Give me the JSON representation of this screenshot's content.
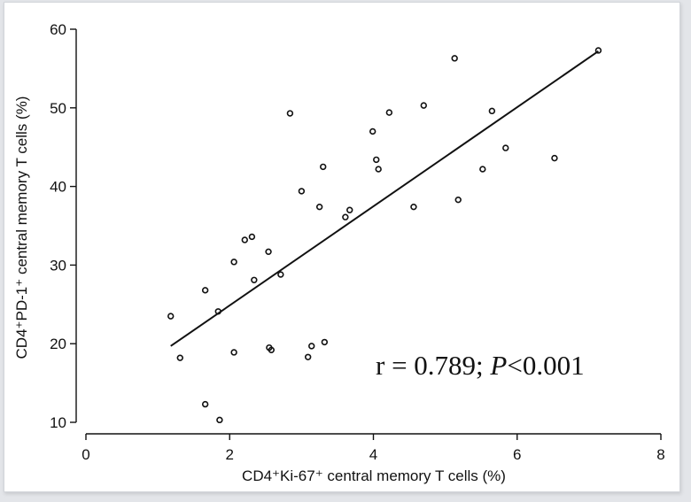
{
  "chart_data": {
    "type": "scatter",
    "xlabel": "CD4⁺Ki-67⁺ central memory T cells (%)",
    "ylabel": "CD4⁺PD-1⁺ central memory T cells (%)",
    "xlim": [
      0,
      8
    ],
    "ylim": [
      10,
      60
    ],
    "xticks": [
      0,
      2,
      4,
      6,
      8
    ],
    "yticks": [
      10,
      20,
      30,
      40,
      50,
      60
    ],
    "grid": false,
    "colors": {
      "points": "#111111",
      "fit_line": "#111111"
    },
    "points": [
      [
        1.18,
        23.5
      ],
      [
        1.31,
        18.2
      ],
      [
        1.66,
        26.8
      ],
      [
        1.66,
        12.3
      ],
      [
        1.84,
        24.1
      ],
      [
        1.86,
        10.3
      ],
      [
        2.06,
        30.4
      ],
      [
        2.06,
        18.9
      ],
      [
        2.21,
        33.2
      ],
      [
        2.31,
        33.6
      ],
      [
        2.34,
        28.1
      ],
      [
        2.54,
        31.7
      ],
      [
        2.55,
        19.5
      ],
      [
        2.58,
        19.2
      ],
      [
        2.71,
        28.8
      ],
      [
        2.84,
        49.3
      ],
      [
        3.0,
        39.4
      ],
      [
        3.09,
        18.3
      ],
      [
        3.14,
        19.7
      ],
      [
        3.25,
        37.4
      ],
      [
        3.3,
        42.5
      ],
      [
        3.32,
        20.2
      ],
      [
        3.61,
        36.1
      ],
      [
        3.67,
        37.0
      ],
      [
        3.99,
        47.0
      ],
      [
        4.04,
        43.4
      ],
      [
        4.07,
        42.2
      ],
      [
        4.22,
        49.4
      ],
      [
        4.56,
        37.4
      ],
      [
        4.7,
        50.3
      ],
      [
        5.13,
        56.3
      ],
      [
        5.18,
        38.3
      ],
      [
        5.52,
        42.2
      ],
      [
        5.65,
        49.6
      ],
      [
        5.84,
        44.9
      ],
      [
        6.52,
        43.6
      ],
      [
        7.13,
        57.3
      ]
    ],
    "fit_line": {
      "x": [
        1.18,
        7.13
      ],
      "y": [
        19.7,
        57.2
      ]
    },
    "annotation": {
      "text_before": "r = 0.789; ",
      "italic": "P",
      "text_after": "<0.001"
    }
  }
}
